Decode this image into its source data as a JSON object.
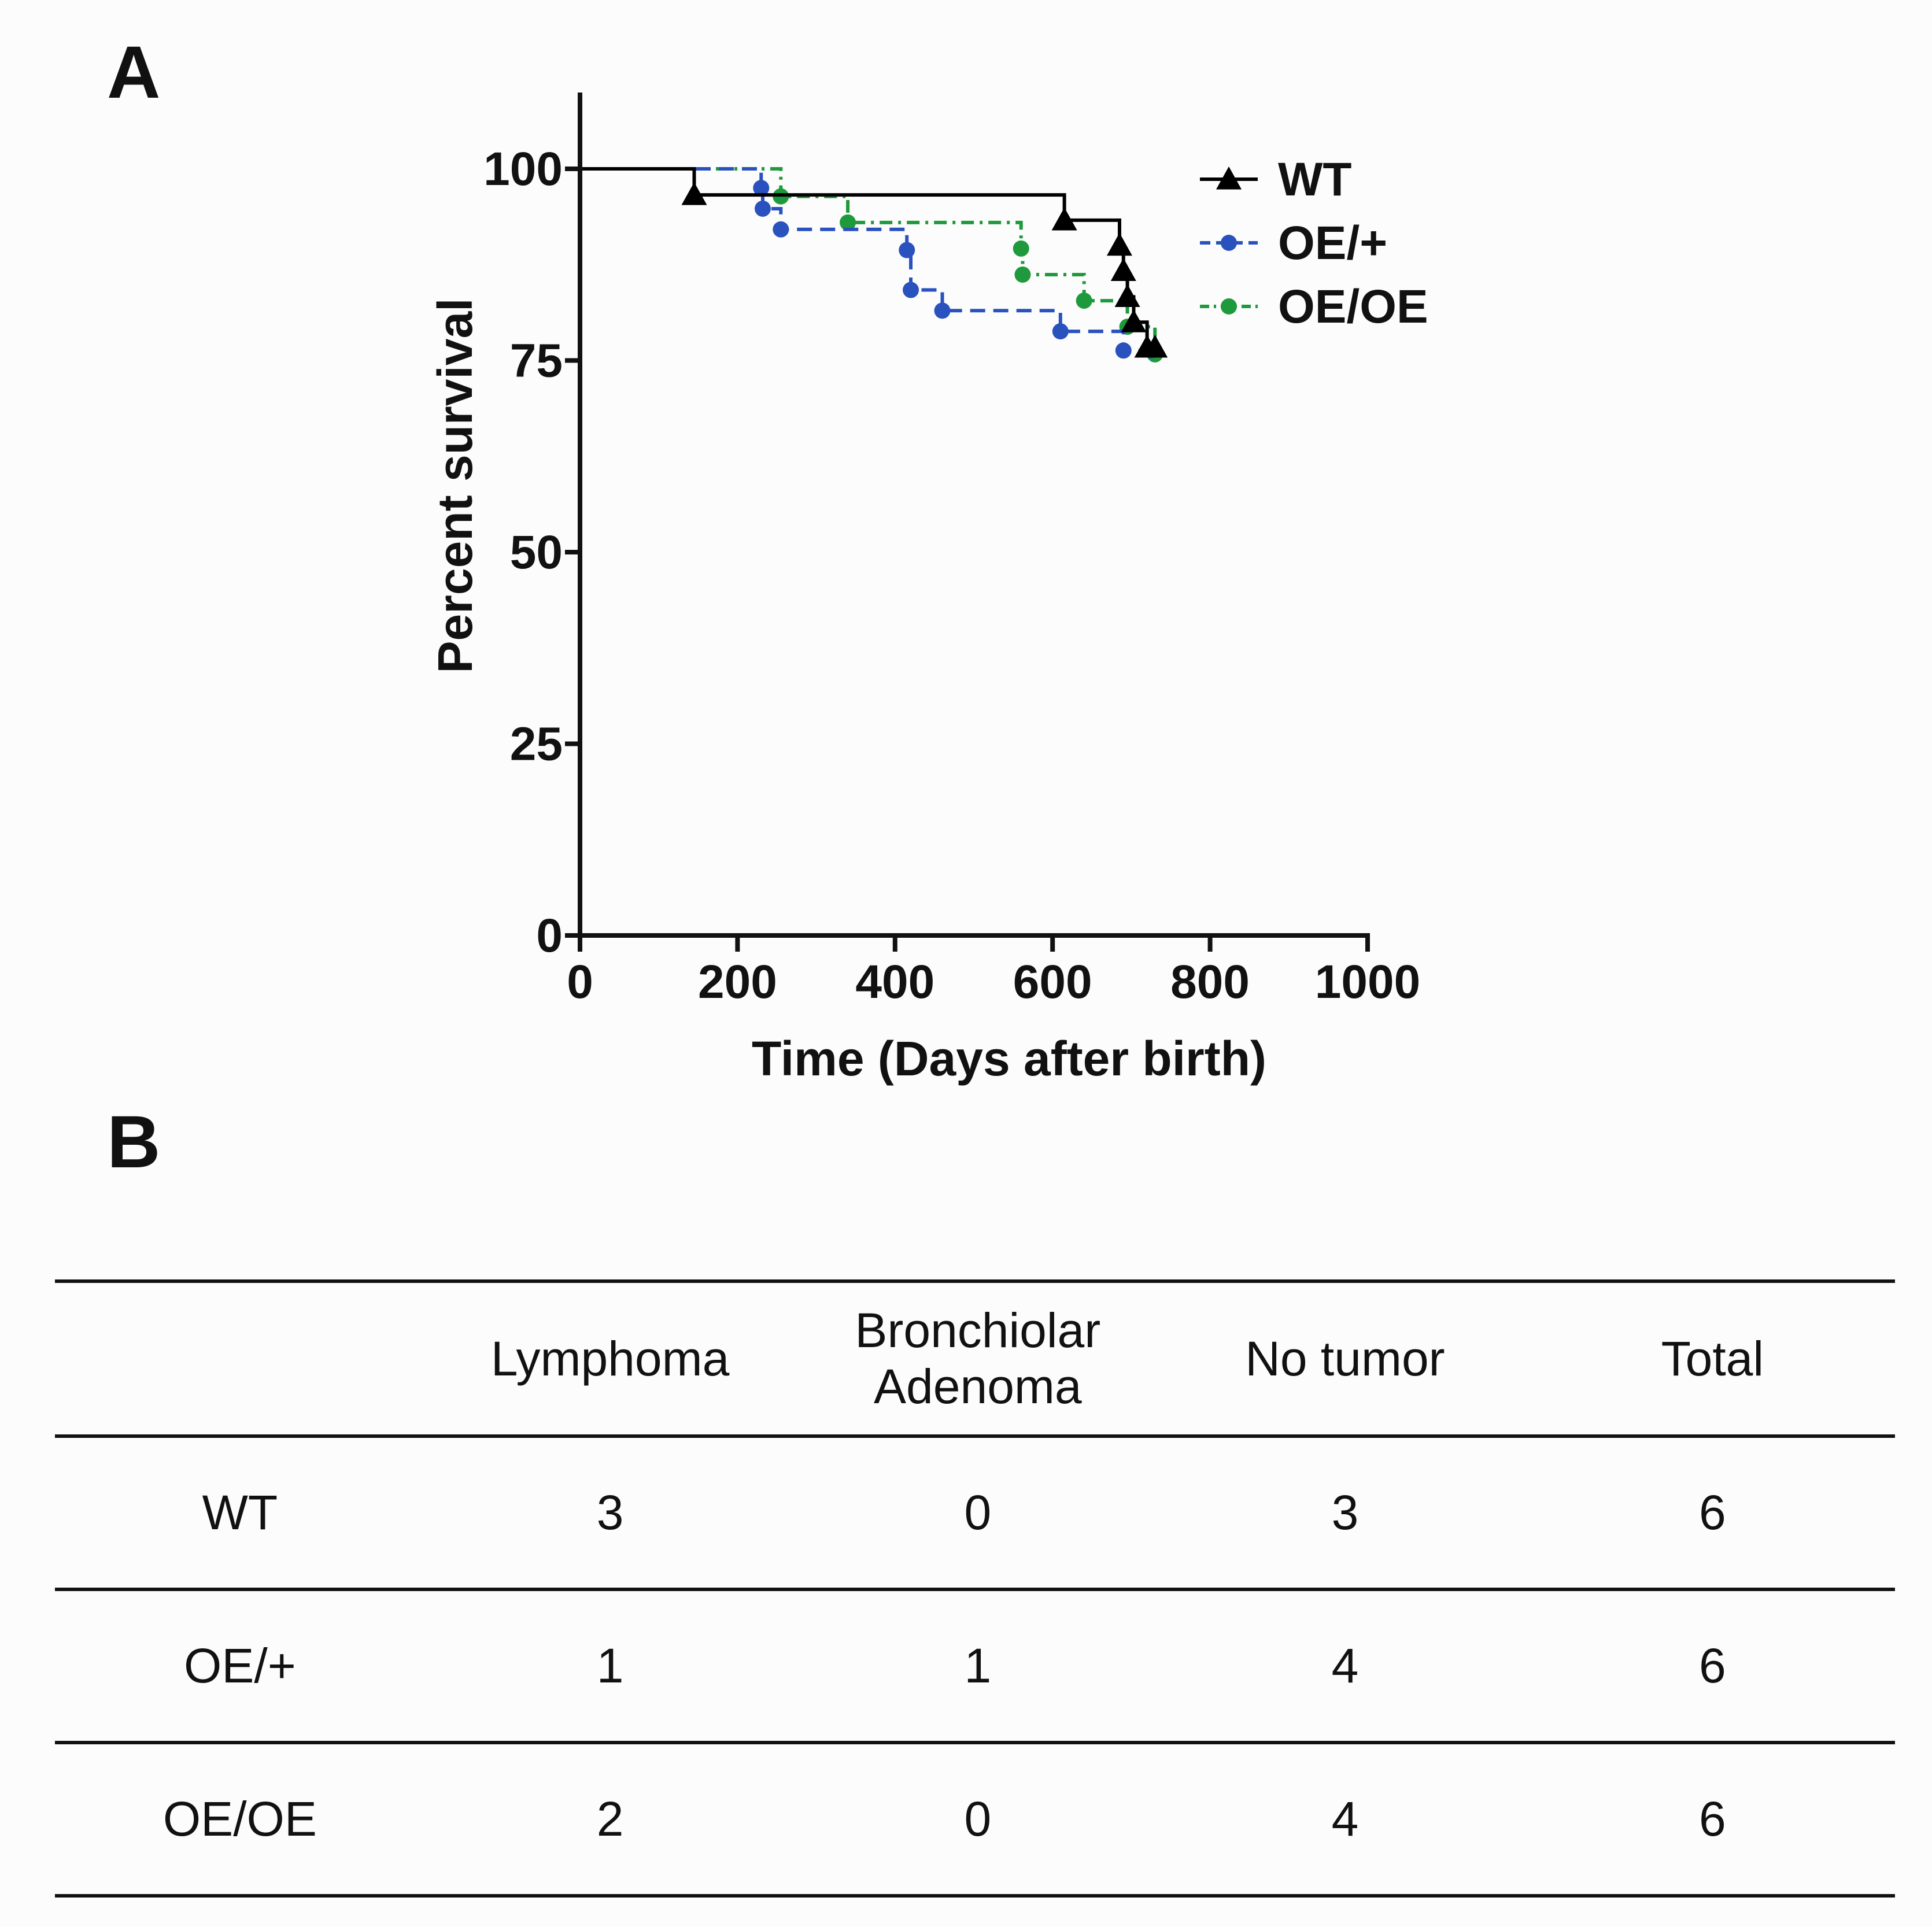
{
  "panels": {
    "a": "A",
    "b": "B"
  },
  "chart_data": {
    "type": "line",
    "subtype": "kaplan-meier step",
    "xlabel": "Time (Days after birth)",
    "ylabel": "Percent survival",
    "xlim": [
      0,
      1000
    ],
    "ylim": [
      0,
      100
    ],
    "xticks": [
      "0",
      "200",
      "400",
      "600",
      "800",
      "1000"
    ],
    "yticks": [
      "0",
      "25",
      "50",
      "75",
      "100"
    ],
    "legend_position": "top-right",
    "series": [
      {
        "name": "WT",
        "color": "#000000",
        "marker": "triangle",
        "dash": "solid",
        "points": [
          [
            0,
            100
          ],
          [
            145,
            96.6
          ],
          [
            615,
            93.3
          ],
          [
            685,
            90
          ],
          [
            690,
            86.7
          ],
          [
            695,
            83.3
          ],
          [
            703,
            80
          ],
          [
            720,
            76.7
          ],
          [
            730,
            76.7
          ]
        ]
      },
      {
        "name": "OE/+",
        "color": "#2a52be",
        "marker": "circle",
        "dash": "dashed",
        "points": [
          [
            0,
            100
          ],
          [
            230,
            97.5
          ],
          [
            232,
            94.8
          ],
          [
            255,
            92.1
          ],
          [
            415,
            89.4
          ],
          [
            420,
            84.2
          ],
          [
            460,
            81.5
          ],
          [
            610,
            78.8
          ],
          [
            690,
            76.3
          ],
          [
            725,
            76.3
          ]
        ]
      },
      {
        "name": "OE/OE",
        "color": "#1e9a3c",
        "marker": "circle",
        "dash": "dashdot",
        "points": [
          [
            0,
            100
          ],
          [
            255,
            96.4
          ],
          [
            340,
            93
          ],
          [
            560,
            89.6
          ],
          [
            562,
            86.2
          ],
          [
            640,
            82.8
          ],
          [
            695,
            79.4
          ],
          [
            730,
            75.8
          ]
        ]
      }
    ]
  },
  "table": {
    "columns": [
      "",
      "Lymphoma",
      [
        "Bronchiolar",
        "Adenoma"
      ],
      "No tumor",
      "Total"
    ],
    "rows": [
      {
        "label": "WT",
        "values": [
          "3",
          "0",
          "3",
          "6"
        ]
      },
      {
        "label": "OE/+",
        "values": [
          "1",
          "1",
          "4",
          "6"
        ]
      },
      {
        "label": "OE/OE",
        "values": [
          "2",
          "0",
          "4",
          "6"
        ]
      }
    ]
  }
}
